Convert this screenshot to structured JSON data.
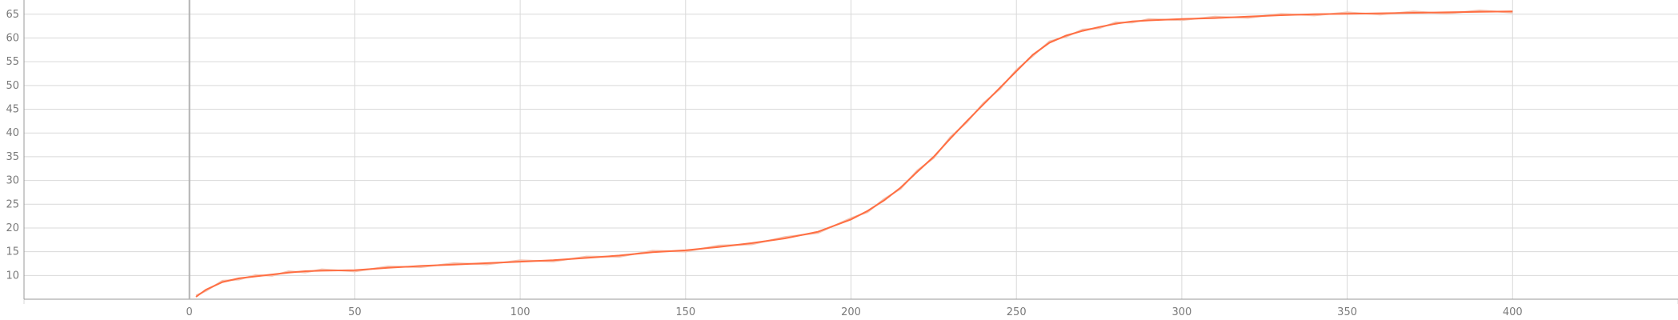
{
  "chart_data": {
    "type": "line",
    "xlim": [
      -50,
      450
    ],
    "ylim": [
      5,
      68
    ],
    "x_ticks": [
      0,
      50,
      100,
      150,
      200,
      250,
      300,
      350,
      400
    ],
    "y_ticks": [
      10,
      15,
      20,
      25,
      30,
      35,
      40,
      45,
      50,
      55,
      60,
      65
    ],
    "x_tick_labels": [
      "0",
      "50",
      "100",
      "150",
      "200",
      "250",
      "300",
      "350",
      "400"
    ],
    "y_tick_labels": [
      "10",
      "15",
      "20",
      "25",
      "30",
      "35",
      "40",
      "45",
      "50",
      "55",
      "60",
      "65"
    ],
    "grid": true,
    "colors": {
      "smoothed": "#ff6e42",
      "raw": "#f4c2b0"
    },
    "series": [
      {
        "x": [
          2,
          5,
          10,
          15,
          20,
          25,
          30,
          35,
          40,
          50,
          60,
          70,
          80,
          90,
          100,
          110,
          120,
          130,
          140,
          150,
          160,
          170,
          180,
          190,
          200,
          205,
          210,
          215,
          220,
          225,
          230,
          235,
          240,
          245,
          250,
          255,
          260,
          265,
          270,
          275,
          280,
          285,
          290,
          300,
          310,
          320,
          330,
          340,
          350,
          360,
          370,
          380,
          390,
          400
        ],
        "y": [
          5.5,
          7,
          8.6,
          9.4,
          9.8,
          10.2,
          10.6,
          10.9,
          11.0,
          11.1,
          11.6,
          12.0,
          12.3,
          12.6,
          12.9,
          13.2,
          13.7,
          14.2,
          14.9,
          15.3,
          16.0,
          16.8,
          17.8,
          19.2,
          21.8,
          23.6,
          25.8,
          28.5,
          31.8,
          35.0,
          38.8,
          42.5,
          46.0,
          49.5,
          53.0,
          56.5,
          59.0,
          60.5,
          61.5,
          62.3,
          63.0,
          63.5,
          63.7,
          64.0,
          64.2,
          64.5,
          64.8,
          65.0,
          65.1,
          65.2,
          65.3,
          65.4,
          65.5,
          65.6
        ]
      }
    ]
  }
}
